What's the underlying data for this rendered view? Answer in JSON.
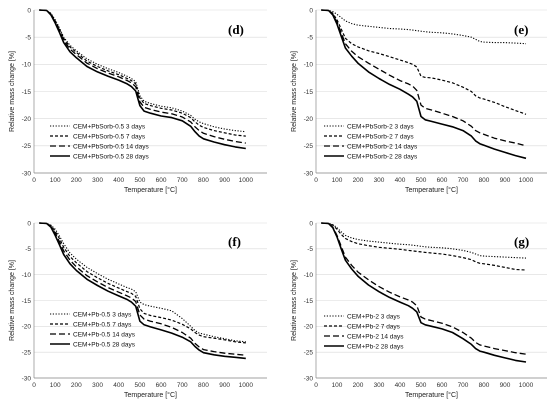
{
  "chart_data": [
    {
      "type": "line",
      "panel_label": "(d)",
      "xlabel": "Temperature [°C]",
      "ylabel": "Relative mass change [%]",
      "xlim": [
        0,
        1100
      ],
      "ylim": [
        -30,
        0
      ],
      "xticks": [
        0,
        100,
        200,
        300,
        400,
        500,
        600,
        700,
        800,
        900,
        1000
      ],
      "yticks": [
        0,
        -5,
        -10,
        -15,
        -20,
        -25,
        -30
      ],
      "legend_position": "bottom-left",
      "x": [
        25,
        60,
        80,
        100,
        120,
        140,
        170,
        200,
        250,
        300,
        350,
        400,
        440,
        460,
        480,
        500,
        520,
        550,
        600,
        650,
        700,
        740,
        760,
        780,
        800,
        850,
        900,
        950,
        1000
      ],
      "series": [
        {
          "name": "CEM+PbSorb-0.5 3 days",
          "style": "dotted",
          "values": [
            0,
            -0.1,
            -0.6,
            -1.8,
            -3.3,
            -5.0,
            -6.5,
            -7.5,
            -9.0,
            -10.0,
            -10.8,
            -11.5,
            -12.2,
            -12.6,
            -13.2,
            -15.8,
            -16.8,
            -17.2,
            -17.7,
            -18.0,
            -18.6,
            -19.4,
            -20.1,
            -20.6,
            -20.9,
            -21.5,
            -21.9,
            -22.2,
            -22.4
          ]
        },
        {
          "name": "CEM+PbSorb-0.5 7 days",
          "style": "short-dashed",
          "values": [
            0,
            -0.1,
            -0.7,
            -2.0,
            -3.5,
            -5.2,
            -6.8,
            -7.8,
            -9.4,
            -10.4,
            -11.2,
            -11.9,
            -12.6,
            -13.0,
            -13.6,
            -16.2,
            -17.2,
            -17.6,
            -18.1,
            -18.4,
            -19.0,
            -19.8,
            -20.6,
            -21.2,
            -21.6,
            -22.2,
            -22.6,
            -23.0,
            -23.2
          ]
        },
        {
          "name": "CEM+PbSorb-0.5 14 days",
          "style": "long-dashed",
          "values": [
            0,
            -0.1,
            -0.8,
            -2.2,
            -3.8,
            -5.6,
            -7.2,
            -8.2,
            -9.8,
            -10.8,
            -11.6,
            -12.3,
            -13.0,
            -13.4,
            -14.1,
            -16.9,
            -17.9,
            -18.3,
            -18.8,
            -19.1,
            -19.7,
            -20.6,
            -21.5,
            -22.2,
            -22.7,
            -23.3,
            -23.8,
            -24.2,
            -24.5
          ]
        },
        {
          "name": "CEM+PbSorb-0.5 28 days",
          "style": "solid",
          "values": [
            0,
            -0.1,
            -0.9,
            -2.4,
            -4.1,
            -6.0,
            -7.7,
            -8.8,
            -10.4,
            -11.4,
            -12.2,
            -12.9,
            -13.6,
            -14.1,
            -14.9,
            -17.6,
            -18.6,
            -19.0,
            -19.5,
            -19.8,
            -20.4,
            -21.4,
            -22.4,
            -23.2,
            -23.7,
            -24.3,
            -24.8,
            -25.2,
            -25.5
          ]
        }
      ]
    },
    {
      "type": "line",
      "panel_label": "(e)",
      "xlabel": "Temperature [°C]",
      "ylabel": "Relative mass change [%]",
      "xlim": [
        0,
        1100
      ],
      "ylim": [
        -30,
        0
      ],
      "xticks": [
        0,
        100,
        200,
        300,
        400,
        500,
        600,
        700,
        800,
        900,
        1000
      ],
      "yticks": [
        0,
        -5,
        -10,
        -15,
        -20,
        -25,
        -30
      ],
      "legend_position": "bottom-left",
      "x": [
        25,
        60,
        80,
        100,
        120,
        140,
        170,
        200,
        250,
        300,
        350,
        400,
        440,
        460,
        480,
        500,
        520,
        550,
        600,
        650,
        700,
        740,
        760,
        780,
        800,
        850,
        900,
        950,
        1000
      ],
      "series": [
        {
          "name": "CEM+PbSorb-2 3 days",
          "style": "dotted",
          "values": [
            0,
            -0.1,
            -0.3,
            -0.8,
            -1.4,
            -2.0,
            -2.5,
            -2.8,
            -3.0,
            -3.2,
            -3.4,
            -3.5,
            -3.6,
            -3.7,
            -3.8,
            -3.9,
            -4.0,
            -4.1,
            -4.2,
            -4.4,
            -4.7,
            -5.0,
            -5.4,
            -5.8,
            -5.9,
            -6.0,
            -6.0,
            -6.1,
            -6.2
          ]
        },
        {
          "name": "CEM+PbSorb-2 7 days",
          "style": "short-dashed",
          "values": [
            0,
            -0.1,
            -0.6,
            -1.8,
            -3.5,
            -5.2,
            -6.2,
            -6.8,
            -7.5,
            -8.0,
            -8.6,
            -9.2,
            -9.7,
            -10.0,
            -10.5,
            -12.2,
            -12.4,
            -12.5,
            -12.9,
            -13.4,
            -14.2,
            -15.0,
            -15.8,
            -16.2,
            -16.4,
            -17.0,
            -17.8,
            -18.5,
            -19.2
          ]
        },
        {
          "name": "CEM+PbSorb-2 14 days",
          "style": "long-dashed",
          "values": [
            0,
            -0.1,
            -0.8,
            -2.2,
            -4.2,
            -6.2,
            -7.6,
            -8.6,
            -9.8,
            -10.9,
            -12.0,
            -13.0,
            -13.6,
            -14.0,
            -14.8,
            -17.5,
            -18.1,
            -18.4,
            -19.0,
            -19.6,
            -20.4,
            -21.4,
            -22.2,
            -22.6,
            -22.9,
            -23.6,
            -24.1,
            -24.5,
            -25.0
          ]
        },
        {
          "name": "CEM+PbSorb-2 28 days",
          "style": "solid",
          "values": [
            0,
            -0.1,
            -0.9,
            -2.6,
            -4.8,
            -7.0,
            -8.5,
            -9.8,
            -11.4,
            -12.6,
            -13.7,
            -14.6,
            -15.5,
            -16.0,
            -16.8,
            -19.6,
            -20.2,
            -20.5,
            -21.0,
            -21.5,
            -22.2,
            -23.2,
            -24.1,
            -24.6,
            -24.9,
            -25.6,
            -26.2,
            -26.8,
            -27.3
          ]
        }
      ]
    },
    {
      "type": "line",
      "panel_label": "(f)",
      "xlabel": "Temperature [°C]",
      "ylabel": "Relative mass change [%]",
      "xlim": [
        0,
        1100
      ],
      "ylim": [
        -30,
        0
      ],
      "xticks": [
        0,
        100,
        200,
        300,
        400,
        500,
        600,
        700,
        800,
        900,
        1000
      ],
      "yticks": [
        0,
        -5,
        -10,
        -15,
        -20,
        -25,
        -30
      ],
      "legend_position": "bottom-left",
      "x": [
        25,
        60,
        80,
        100,
        120,
        140,
        170,
        200,
        250,
        300,
        350,
        400,
        440,
        460,
        480,
        500,
        520,
        550,
        600,
        650,
        700,
        740,
        760,
        780,
        800,
        850,
        900,
        950,
        1000
      ],
      "series": [
        {
          "name": "CEM+Pb-0.5 3 days",
          "style": "dotted",
          "values": [
            0,
            -0.1,
            -0.4,
            -1.2,
            -2.5,
            -4.0,
            -5.8,
            -7.0,
            -8.6,
            -9.8,
            -10.9,
            -11.8,
            -12.5,
            -12.8,
            -13.3,
            -15.3,
            -15.8,
            -16.1,
            -16.5,
            -17.0,
            -18.5,
            -20.0,
            -20.8,
            -21.3,
            -21.5,
            -22.0,
            -22.4,
            -22.8,
            -23.0
          ]
        },
        {
          "name": "CEM+Pb-0.5 7 days",
          "style": "short-dashed",
          "values": [
            0,
            -0.1,
            -0.5,
            -1.6,
            -3.0,
            -4.7,
            -6.5,
            -7.7,
            -9.4,
            -10.6,
            -11.7,
            -12.6,
            -13.3,
            -13.6,
            -14.2,
            -16.6,
            -17.5,
            -17.9,
            -18.3,
            -18.8,
            -19.6,
            -20.5,
            -21.2,
            -21.7,
            -22.0,
            -22.3,
            -22.6,
            -23.0,
            -23.2
          ]
        },
        {
          "name": "CEM+Pb-0.5 14 days",
          "style": "long-dashed",
          "values": [
            0,
            -0.1,
            -0.7,
            -2.0,
            -3.6,
            -5.4,
            -7.2,
            -8.5,
            -10.2,
            -11.4,
            -12.5,
            -13.4,
            -14.1,
            -14.5,
            -15.2,
            -17.8,
            -18.6,
            -19.0,
            -19.5,
            -20.2,
            -21.2,
            -22.3,
            -23.3,
            -24.0,
            -24.5,
            -24.9,
            -25.2,
            -25.4,
            -25.6
          ]
        },
        {
          "name": "CEM+Pb-0.5 28 days",
          "style": "solid",
          "values": [
            0,
            -0.1,
            -0.8,
            -2.4,
            -4.2,
            -6.1,
            -7.9,
            -9.2,
            -10.9,
            -12.1,
            -13.2,
            -14.1,
            -14.8,
            -15.3,
            -16.1,
            -19.0,
            -19.7,
            -20.1,
            -20.7,
            -21.3,
            -22.1,
            -23.0,
            -23.9,
            -24.6,
            -25.1,
            -25.5,
            -25.8,
            -26.0,
            -26.2
          ]
        }
      ]
    },
    {
      "type": "line",
      "panel_label": "(g)",
      "xlabel": "Temperature [°C]",
      "ylabel": "Relative mass change [%]",
      "xlim": [
        0,
        1100
      ],
      "ylim": [
        -30,
        0
      ],
      "xticks": [
        0,
        100,
        200,
        300,
        400,
        500,
        600,
        700,
        800,
        900,
        1000
      ],
      "yticks": [
        0,
        -5,
        -10,
        -15,
        -20,
        -25,
        -30
      ],
      "legend_position": "bottom-left",
      "x": [
        25,
        60,
        80,
        100,
        120,
        140,
        170,
        200,
        250,
        300,
        350,
        400,
        440,
        460,
        480,
        500,
        520,
        550,
        600,
        650,
        700,
        740,
        760,
        780,
        800,
        850,
        900,
        950,
        1000
      ],
      "series": [
        {
          "name": "CEM+Pb-2 3 days",
          "style": "dotted",
          "values": [
            0,
            -0.1,
            -0.3,
            -0.9,
            -1.7,
            -2.4,
            -2.9,
            -3.2,
            -3.5,
            -3.7,
            -3.9,
            -4.1,
            -4.2,
            -4.3,
            -4.4,
            -4.5,
            -4.6,
            -4.7,
            -4.8,
            -5.0,
            -5.3,
            -5.7,
            -6.0,
            -6.3,
            -6.4,
            -6.5,
            -6.6,
            -6.7,
            -6.8
          ]
        },
        {
          "name": "CEM+Pb-2 7 days",
          "style": "short-dashed",
          "values": [
            0,
            -0.1,
            -0.4,
            -1.2,
            -2.2,
            -3.0,
            -3.6,
            -4.0,
            -4.4,
            -4.7,
            -4.9,
            -5.1,
            -5.3,
            -5.4,
            -5.5,
            -5.6,
            -5.7,
            -5.8,
            -6.0,
            -6.3,
            -6.7,
            -7.1,
            -7.5,
            -7.8,
            -7.9,
            -8.2,
            -8.6,
            -9.0,
            -9.1
          ]
        },
        {
          "name": "CEM+Pb-2 14 days",
          "style": "long-dashed",
          "values": [
            0,
            -0.1,
            -0.8,
            -2.4,
            -4.5,
            -6.6,
            -8.2,
            -9.5,
            -11.0,
            -12.3,
            -13.4,
            -14.3,
            -14.9,
            -15.3,
            -16.0,
            -18.2,
            -18.6,
            -18.9,
            -19.4,
            -20.1,
            -21.2,
            -22.3,
            -23.1,
            -23.6,
            -23.8,
            -24.3,
            -24.7,
            -25.1,
            -25.4
          ]
        },
        {
          "name": "CEM+Pb-2 28 days",
          "style": "solid",
          "values": [
            0,
            -0.1,
            -0.9,
            -2.7,
            -5.0,
            -7.2,
            -8.9,
            -10.3,
            -12.0,
            -13.3,
            -14.4,
            -15.3,
            -16.0,
            -16.5,
            -17.2,
            -19.3,
            -19.7,
            -20.0,
            -20.5,
            -21.2,
            -22.4,
            -23.5,
            -24.3,
            -24.8,
            -25.0,
            -25.6,
            -26.1,
            -26.6,
            -26.9
          ]
        }
      ]
    }
  ]
}
